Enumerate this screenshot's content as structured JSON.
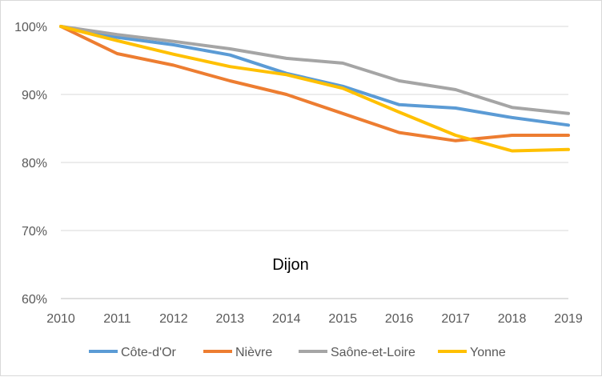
{
  "chart_data": {
    "type": "line",
    "title": "",
    "xlabel": "",
    "ylabel": "",
    "x": [
      2010,
      2011,
      2012,
      2013,
      2014,
      2015,
      2016,
      2017,
      2018,
      2019
    ],
    "x_tick_labels": [
      "2010",
      "2011",
      "2012",
      "2013",
      "2014",
      "2015",
      "2016",
      "2017",
      "2018",
      "2019"
    ],
    "ylim": [
      60,
      100
    ],
    "y_ticks": [
      60,
      70,
      80,
      90,
      100
    ],
    "y_tick_labels": [
      "60%",
      "70%",
      "80%",
      "90%",
      "100%"
    ],
    "grid": "horizontal",
    "legend_position": "bottom",
    "annotation": "Dijon",
    "series": [
      {
        "name": "Côte-d'Or",
        "color": "#5b9bd5",
        "values": [
          100,
          98.4,
          97.3,
          95.8,
          93.1,
          91.2,
          88.5,
          88.0,
          86.6,
          85.5
        ]
      },
      {
        "name": "Nièvre",
        "color": "#ed7d31",
        "values": [
          100,
          96.0,
          94.3,
          92.0,
          90.0,
          87.2,
          84.4,
          83.2,
          84.0,
          84.0
        ]
      },
      {
        "name": "Saône-et-Loire",
        "color": "#a5a5a5",
        "values": [
          100,
          98.8,
          97.8,
          96.7,
          95.3,
          94.6,
          92.0,
          90.7,
          88.1,
          87.2
        ]
      },
      {
        "name": "Yonne",
        "color": "#ffc000",
        "values": [
          100,
          97.9,
          95.9,
          94.1,
          92.9,
          90.9,
          87.4,
          84.0,
          81.7,
          81.9
        ]
      }
    ]
  }
}
